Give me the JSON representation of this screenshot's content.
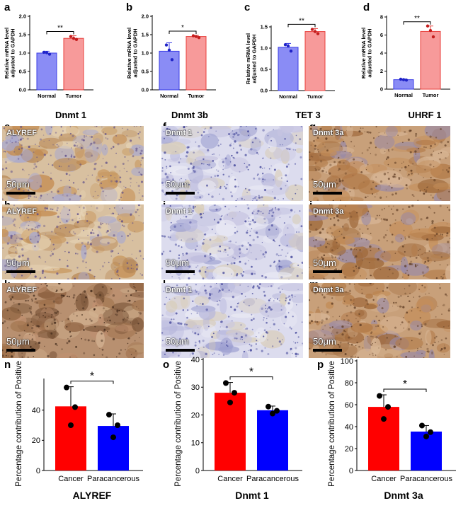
{
  "top_letters": [
    "a",
    "b",
    "c",
    "d"
  ],
  "micro_letters": [
    "e",
    "f",
    "g",
    "h",
    "i",
    "j",
    "k",
    "l",
    "m"
  ],
  "bottom_letters": [
    "n",
    "o",
    "p"
  ],
  "micrographs": {
    "scale_label": "50μm",
    "rows": [
      [
        {
          "stain": "ALYREF",
          "tone": "mixed"
        },
        {
          "stain": "Dnmt 1",
          "tone": "blue"
        },
        {
          "stain": "Dnmt 3a",
          "tone": "brown"
        }
      ],
      [
        {
          "stain": "ALYREF",
          "tone": "mixed"
        },
        {
          "stain": "Dnmt 1",
          "tone": "blue"
        },
        {
          "stain": "Dnmt 3a",
          "tone": "brown"
        }
      ],
      [
        {
          "stain": "ALYREF",
          "tone": "dark"
        },
        {
          "stain": "Dnmt 1",
          "tone": "blue"
        },
        {
          "stain": "Dnmt 3a",
          "tone": "brown"
        }
      ]
    ]
  },
  "colors": {
    "normal_fill": "#8a8cf5",
    "normal_edge": "#3b3ee6",
    "normal_dot": "#1f23c8",
    "tumor_fill": "#f79a9a",
    "tumor_edge": "#e8403c",
    "tumor_dot": "#c41d1d",
    "cancer_fill": "#ff0000",
    "paracancer_fill": "#0000ff",
    "dot": "#000000"
  },
  "chart_data": [
    {
      "type": "bar",
      "gene": "Dnmt 1",
      "categories": [
        "Normal",
        "Tumor"
      ],
      "values": [
        1.0,
        1.4
      ],
      "errors": [
        0.05,
        0.07
      ],
      "points": [
        [
          1.02,
          0.97,
          1.01
        ],
        [
          1.45,
          1.37,
          1.4
        ]
      ],
      "ylabel": "Relative mRNA level adjusted to GAPDH",
      "ylim": [
        0,
        2.0
      ],
      "yticks": [
        0,
        0.5,
        1.0,
        1.5,
        2.0
      ],
      "ytick_labels": [
        "0.0",
        "0.5",
        "1.0",
        "1.5",
        "2.0"
      ],
      "significance": "**"
    },
    {
      "type": "bar",
      "gene": "Dnmt 3b",
      "categories": [
        "Normal",
        "Tumor"
      ],
      "values": [
        1.05,
        1.45
      ],
      "errors": [
        0.23,
        0.03
      ],
      "points": [
        [
          1.22,
          0.82,
          1.08
        ],
        [
          1.47,
          1.42,
          1.45
        ]
      ],
      "ylabel": "Relative mRNA level adjusted to GAPDH",
      "ylim": [
        0,
        2.0
      ],
      "yticks": [
        0,
        0.5,
        1.0,
        1.5,
        2.0
      ],
      "ytick_labels": [
        "0.0",
        "0.5",
        "1.0",
        "1.5",
        "2.0"
      ],
      "significance": "*"
    },
    {
      "type": "bar",
      "gene": "TET 3",
      "categories": [
        "Normal",
        "Tumor"
      ],
      "values": [
        1.02,
        1.39
      ],
      "errors": [
        0.09,
        0.07
      ],
      "points": [
        [
          1.08,
          0.93,
          1.05
        ],
        [
          1.44,
          1.34,
          1.39
        ]
      ],
      "ylabel": "Relative mRNA level adjusted to GAPDH",
      "ylim": [
        0,
        1.5
      ],
      "yticks": [
        0,
        0.5,
        1.0,
        1.5
      ],
      "ytick_labels": [
        "0.0",
        "0.5",
        "1.0",
        "1.5"
      ],
      "significance": "**"
    },
    {
      "type": "bar",
      "gene": "UHRF 1",
      "categories": [
        "Normal",
        "Tumor"
      ],
      "values": [
        1.05,
        6.4
      ],
      "errors": [
        0.08,
        0.6
      ],
      "points": [
        [
          1.1,
          1.0,
          1.05
        ],
        [
          7.0,
          5.8,
          6.5
        ]
      ],
      "ylabel": "Relative mRNA level adjusted to GAPDH",
      "ylim": [
        0,
        8
      ],
      "yticks": [
        0,
        2,
        4,
        6,
        8
      ],
      "ytick_labels": [
        "0",
        "2",
        "4",
        "6",
        "8"
      ],
      "significance": "**"
    },
    {
      "type": "bar",
      "gene": "ALYREF",
      "categories": [
        "Cancer",
        "Paracancerous"
      ],
      "values": [
        42.5,
        29.5
      ],
      "errors": [
        13.0,
        8.0
      ],
      "points": [
        [
          55.0,
          42.0,
          30.0
        ],
        [
          37.0,
          30.0,
          22.0
        ]
      ],
      "ylabel": "Percentage contribution of Positive",
      "ylim": [
        0,
        60
      ],
      "yticks": [
        0,
        20,
        40
      ],
      "ytick_labels": [
        "0",
        "20",
        "40"
      ],
      "significance": "*"
    },
    {
      "type": "bar",
      "gene": "Dnmt 1",
      "categories": [
        "Cancer",
        "Paracancerous"
      ],
      "values": [
        28.0,
        21.7
      ],
      "errors": [
        3.7,
        1.5
      ],
      "points": [
        [
          31.5,
          28.0,
          24.5
        ],
        [
          23.0,
          21.5,
          20.5
        ]
      ],
      "ylabel": "Percentage contribution of Positive",
      "ylim": [
        0,
        40
      ],
      "yticks": [
        0,
        10,
        20,
        30,
        40
      ],
      "ytick_labels": [
        "0",
        "10",
        "20",
        "30",
        "40"
      ],
      "significance": "*"
    },
    {
      "type": "bar",
      "gene": "Dnmt 3a",
      "categories": [
        "Cancer",
        "Paracancerous"
      ],
      "values": [
        58.0,
        35.5
      ],
      "errors": [
        11.0,
        5.5
      ],
      "points": [
        [
          68.0,
          58.0,
          47.0
        ],
        [
          41.0,
          35.0,
          31.0
        ]
      ],
      "ylabel": "Percentage contribution of Positive",
      "ylim": [
        0,
        100
      ],
      "yticks": [
        0,
        20,
        40,
        60,
        80,
        100
      ],
      "ytick_labels": [
        "0",
        "20",
        "40",
        "60",
        "80",
        "100"
      ],
      "significance": "*"
    }
  ]
}
